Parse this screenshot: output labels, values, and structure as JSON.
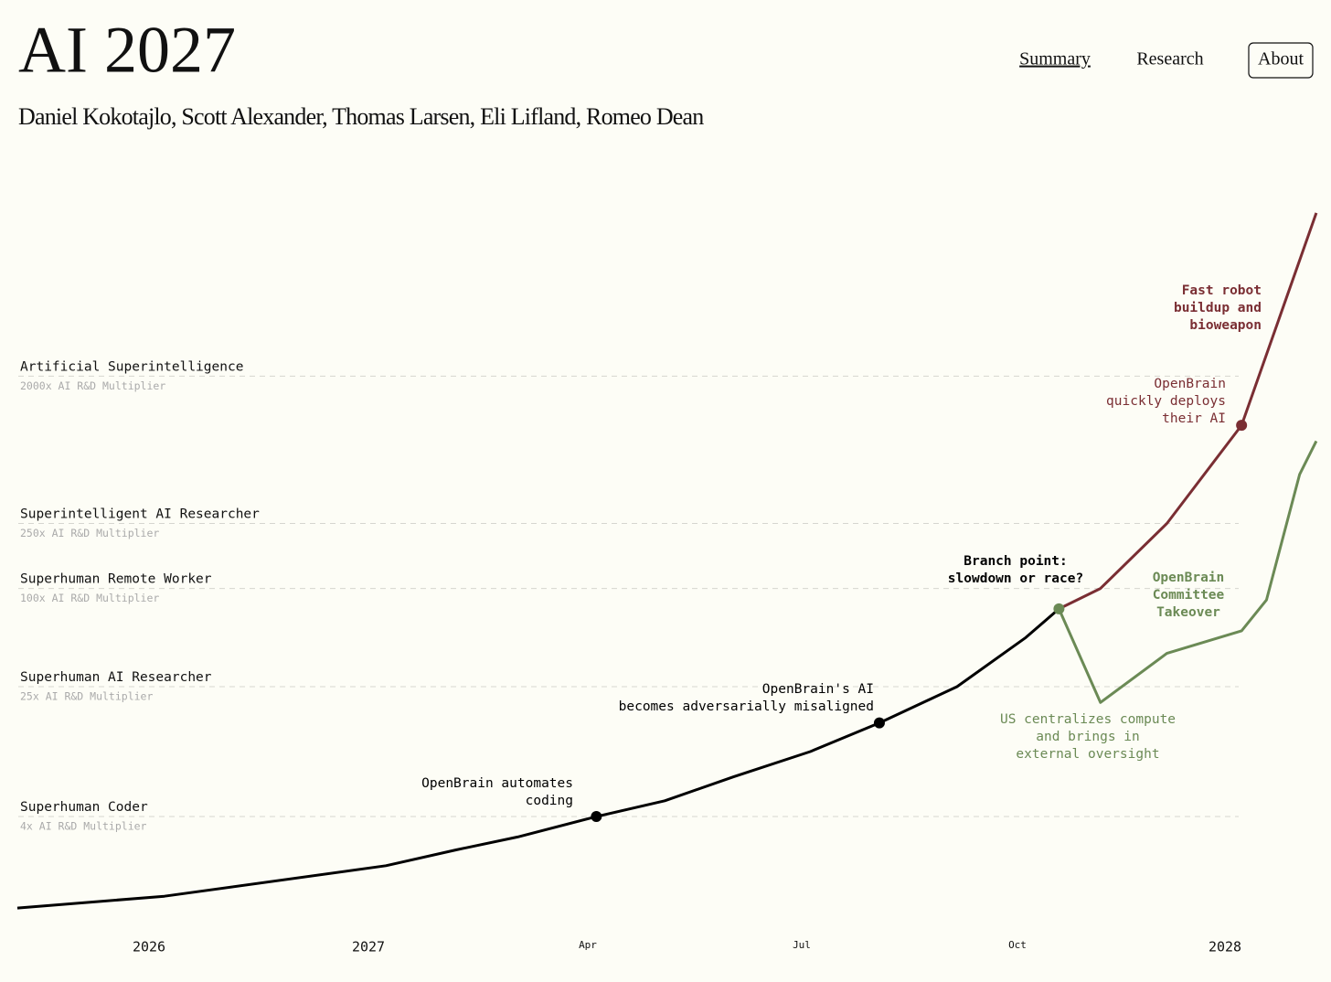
{
  "header": {
    "title": "AI 2027",
    "authors": "Daniel Kokotajlo, Scott Alexander, Thomas Larsen, Eli Lifland, Romeo Dean",
    "nav": [
      "Summary",
      "Research",
      "About"
    ]
  },
  "chart_data": {
    "type": "line",
    "log_scale": true,
    "xlim": [
      2025.4,
      2028.11
    ],
    "ylim": [
      1,
      30000
    ],
    "xticks": [
      2026,
      2027,
      {
        "value": 2027.25,
        "label": "Apr"
      },
      {
        "value": 2027.5,
        "label": "Jul"
      },
      {
        "value": 2027.75,
        "label": "Oct"
      },
      2028
    ],
    "levels": [
      {
        "name": "Artificial Superintelligence",
        "subtitle": "2000x AI R&D Multiplier",
        "value": 2000
      },
      {
        "name": "Superintelligent AI Researcher",
        "subtitle": "250x AI R&D Multiplier",
        "value": 250
      },
      {
        "name": "Superhuman Remote Worker",
        "subtitle": "100x AI R&D Multiplier",
        "value": 100
      },
      {
        "name": "Superhuman AI Researcher",
        "subtitle": "25x AI R&D Multiplier",
        "value": 25
      },
      {
        "name": "Superhuman Coder",
        "subtitle": "4x AI R&D Multiplier",
        "value": 4
      }
    ],
    "series": [
      {
        "color": "#000000",
        "x": [
          2025.4,
          2026.07,
          2027.02,
          2027.1,
          2027.17,
          2027.26,
          2027.34,
          2027.42,
          2027.51,
          2027.59,
          2027.68,
          2027.76,
          2027.8
        ],
        "values": [
          1.1,
          1.3,
          2,
          2.5,
          3,
          4,
          5,
          7,
          10,
          15,
          25,
          50,
          75
        ]
      },
      {
        "color": "#7a2e33",
        "x": [
          2027.8,
          2027.85,
          2027.93,
          2028.02,
          2028.11
        ],
        "values": [
          75,
          100,
          250,
          1000,
          20000
        ]
      },
      {
        "color": "#6b8a55",
        "x": [
          2027.8,
          2027.85,
          2027.93,
          2028.02,
          2028.05,
          2028.09,
          2028.11
        ],
        "values": [
          75,
          20,
          40,
          55,
          85,
          500,
          800
        ]
      }
    ],
    "annotations": [
      {
        "text": [
          "OpenBrain automates",
          "coding"
        ],
        "color": "#000000",
        "bold": false
      },
      {
        "text": [
          "OpenBrain's AI",
          "becomes adversarially misaligned"
        ],
        "color": "#000000",
        "bold": false
      },
      {
        "text": [
          "Branch point:",
          "slowdown or race?"
        ],
        "color": "#000000",
        "bold": true
      },
      {
        "text": [
          "US centralizes compute",
          "and brings in",
          "external oversight"
        ],
        "color": "#6b8a55",
        "bold": false
      },
      {
        "text": [
          "OpenBrain",
          "Committee",
          "Takeover"
        ],
        "color": "#6b8a55",
        "bold": true
      },
      {
        "text": [
          "OpenBrain",
          "quickly deploys",
          "their AI"
        ],
        "color": "#7a2e33",
        "bold": false
      },
      {
        "text": [
          "Fast robot",
          "buildup and",
          "bioweapon"
        ],
        "color": "#7a2e33",
        "bold": true
      }
    ]
  }
}
